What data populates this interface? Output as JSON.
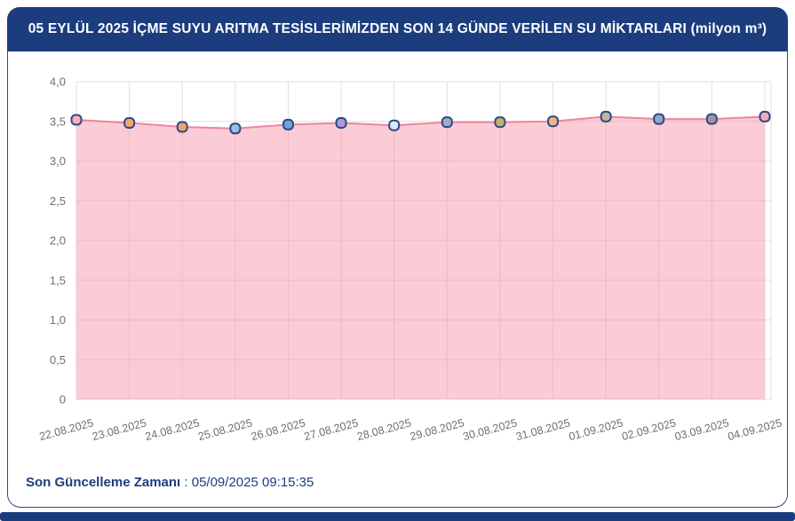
{
  "header": {
    "title": "05 EYLÜL 2025 İÇME SUYU ARITMA TESİSLERİMİZDEN SON 14 GÜNDE VERİLEN SU MİKTARLARI (milyon m³)"
  },
  "footer": {
    "label": "Son Güncelleme Zamanı",
    "separator": ":",
    "value": "05/09/2025 09:15:35"
  },
  "colors": {
    "navy": "#1b3d7e",
    "panel_border": "#2e4c8e",
    "line": "#f2839c",
    "area_fill": "rgba(246,143,164,0.45)",
    "marker_border": "#2a4a8b",
    "grid": "#e0e0e0",
    "axis_text": "#6f6f6f"
  },
  "chart_data": {
    "type": "area",
    "title": "05 EYLÜL 2025 İÇME SUYU ARITMA TESİSLERİMİZDEN SON 14 GÜNDE VERİLEN SU MİKTARLARI (milyon m³)",
    "xlabel": "",
    "ylabel": "",
    "x": [
      "22.08.2025",
      "23.08.2025",
      "24.08.2025",
      "25.08.2025",
      "26.08.2025",
      "27.08.2025",
      "28.08.2025",
      "29.08.2025",
      "30.08.2025",
      "31.08.2025",
      "01.09.2025",
      "02.09.2025",
      "03.09.2025",
      "04.09.2025"
    ],
    "values": [
      3.52,
      3.48,
      3.43,
      3.41,
      3.46,
      3.48,
      3.45,
      3.49,
      3.49,
      3.5,
      3.56,
      3.53,
      3.53,
      3.56
    ],
    "point_colors": [
      "#f8aebe",
      "#f4a768",
      "#f1a463",
      "#9cbede",
      "#72a2d8",
      "#b495dc",
      "#dde8f2",
      "#a2abb9",
      "#c9af69",
      "#f0b47e",
      "#c7b698",
      "#92a8c8",
      "#a8909e",
      "#f5a9b9"
    ],
    "ylim": [
      0,
      4
    ],
    "ytick_step": 0.5,
    "ytick_labels": [
      "0",
      "0,5",
      "1,0",
      "1,5",
      "2,0",
      "2,5",
      "3,0",
      "3,5",
      "4,0"
    ],
    "grid": true,
    "legend": "none"
  }
}
